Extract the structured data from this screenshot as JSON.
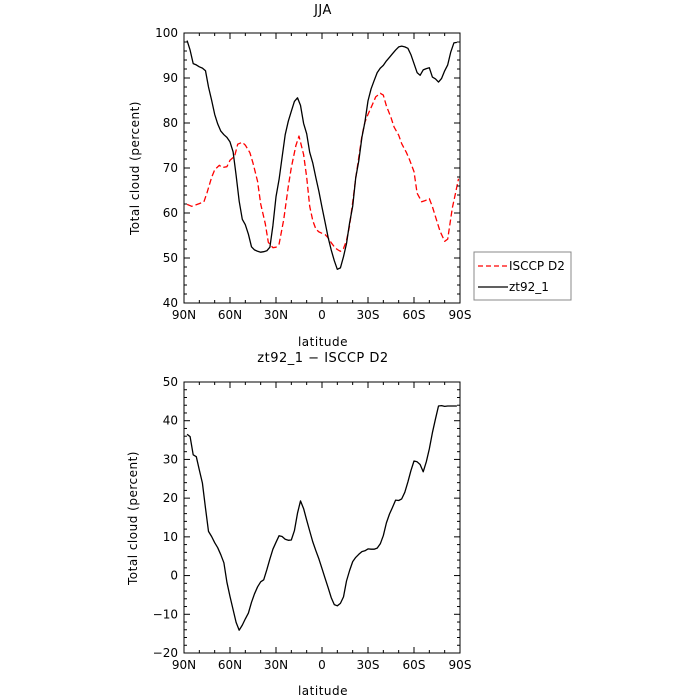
{
  "chart_data": [
    {
      "type": "line",
      "title": "JJA",
      "xlabel": "latitude",
      "ylabel": "Total cloud (percent)",
      "xlim": [
        90,
        -90
      ],
      "ylim": [
        40,
        100
      ],
      "x_ticks": [
        90,
        60,
        30,
        0,
        -30,
        -60,
        -90
      ],
      "x_tick_labels": [
        "90N",
        "60N",
        "30N",
        "0",
        "30S",
        "60S",
        "90S"
      ],
      "y_ticks": [
        40,
        50,
        60,
        70,
        80,
        90,
        100
      ],
      "y_tick_labels": [
        "40",
        "50",
        "60",
        "70",
        "80",
        "90",
        "100"
      ],
      "legend_position": "right",
      "series": [
        {
          "name": "ISCCP D2",
          "color": "#ff0000",
          "dash": "dashed",
          "x": [
            88,
            85,
            80,
            77,
            75,
            72,
            70,
            67,
            65,
            62,
            60,
            57,
            55,
            52,
            50,
            47,
            45,
            42,
            40,
            37,
            35,
            32,
            30,
            28,
            25,
            22,
            20,
            17,
            15,
            12,
            10,
            8,
            6,
            4,
            2,
            0,
            -2,
            -4,
            -6,
            -8,
            -10,
            -12,
            -14,
            -16,
            -18,
            -20,
            -22,
            -24,
            -26,
            -28,
            -30,
            -33,
            -35,
            -38,
            -40,
            -42,
            -45,
            -47,
            -50,
            -52,
            -55,
            -57,
            -60,
            -62,
            -65,
            -67,
            -70,
            -72,
            -75,
            -77,
            -80,
            -82,
            -85,
            -87,
            -89
          ],
          "y": [
            61.9,
            61.5,
            62.1,
            62.5,
            64.5,
            67.9,
            69.6,
            70.6,
            70.1,
            70.3,
            71.7,
            72.6,
            75.3,
            75.7,
            75.1,
            73.4,
            71.1,
            67,
            62,
            57.6,
            53.5,
            52.3,
            52.4,
            53.1,
            58.5,
            65.9,
            70.1,
            75,
            77.1,
            73,
            67.9,
            61.5,
            58.3,
            56.4,
            55.8,
            55.5,
            55.2,
            54.5,
            53.4,
            52.5,
            51.9,
            51.5,
            52.1,
            53.9,
            57.2,
            62.4,
            67.7,
            72.4,
            77.1,
            80.2,
            81.9,
            84.2,
            85.8,
            86.6,
            86.2,
            83.8,
            81.2,
            79.1,
            77.3,
            75.4,
            73.5,
            71.9,
            69.2,
            64.4,
            62.5,
            62.7,
            63.2,
            61.4,
            58.1,
            55.9,
            53.7,
            54.2,
            61.1,
            64.3,
            67.6
          ]
        },
        {
          "name": "zt92_1",
          "color": "#000000",
          "dash": "solid",
          "x": [
            88,
            86,
            84,
            82,
            80,
            78,
            76,
            74,
            72,
            70,
            68,
            66,
            64,
            62,
            60,
            58,
            56,
            54,
            52,
            50,
            48,
            46,
            44,
            42,
            40,
            38,
            36,
            34,
            32,
            30,
            28,
            26,
            24,
            22,
            20,
            18,
            16,
            14,
            12,
            10,
            8,
            6,
            4,
            2,
            0,
            -2,
            -4,
            -6,
            -8,
            -10,
            -12,
            -14,
            -16,
            -18,
            -20,
            -22,
            -24,
            -26,
            -28,
            -30,
            -32,
            -34,
            -36,
            -38,
            -40,
            -42,
            -44,
            -46,
            -48,
            -50,
            -52,
            -54,
            -56,
            -58,
            -60,
            -62,
            -64,
            -66,
            -68,
            -70,
            -72,
            -74,
            -76,
            -78,
            -80,
            -82,
            -84,
            -86,
            -88
          ],
          "y": [
            98.3,
            96.2,
            93.2,
            92.9,
            92.5,
            92.2,
            91.6,
            88,
            85.1,
            81.9,
            79.8,
            78.2,
            77.4,
            76.8,
            75.8,
            73.6,
            68.4,
            62.6,
            58.6,
            57.4,
            55.3,
            52.5,
            51.8,
            51.5,
            51.3,
            51.4,
            51.6,
            52.4,
            57.2,
            63.6,
            67.5,
            72.4,
            77.4,
            80.4,
            82.6,
            84.8,
            85.6,
            83.9,
            79.9,
            77.6,
            73.5,
            71.1,
            67.8,
            64.8,
            61.3,
            57.9,
            54.6,
            51.8,
            49.4,
            47.5,
            47.8,
            50.3,
            53.2,
            57.8,
            61.5,
            67.8,
            71.6,
            76.8,
            80.2,
            84.9,
            87.6,
            89.4,
            91.2,
            92.2,
            92.8,
            93.8,
            94.6,
            95.4,
            96.2,
            96.9,
            97.1,
            96.9,
            96.6,
            95.2,
            93.2,
            91.2,
            90.6,
            91.8,
            92.1,
            92.3,
            90.2,
            89.8,
            89.1,
            89.9,
            91.6,
            92.9,
            95.8,
            97.8,
            97.9
          ]
        }
      ]
    },
    {
      "type": "line",
      "title": "zt92_1 − ISCCP D2",
      "xlabel": "latitude",
      "ylabel": "Total cloud (percent)",
      "xlim": [
        90,
        -90
      ],
      "ylim": [
        -20,
        50
      ],
      "x_ticks": [
        90,
        60,
        30,
        0,
        -30,
        -60,
        -90
      ],
      "x_tick_labels": [
        "90N",
        "60N",
        "30N",
        "0",
        "30S",
        "60S",
        "90S"
      ],
      "y_ticks": [
        -20,
        -10,
        0,
        10,
        20,
        30,
        40,
        50
      ],
      "y_tick_labels": [
        "−20",
        "−10",
        "0",
        "10",
        "20",
        "30",
        "40",
        "50"
      ],
      "series": [
        {
          "color": "#000000",
          "dash": "solid",
          "x": [
            88,
            86,
            84,
            82,
            80,
            78,
            76,
            74,
            72,
            70,
            68,
            66,
            64,
            62,
            60,
            58,
            56,
            54,
            52,
            50,
            48,
            46,
            44,
            42,
            40,
            38,
            36,
            34,
            32,
            30,
            28,
            26,
            24,
            22,
            20,
            18,
            16,
            14,
            12,
            10,
            8,
            6,
            4,
            2,
            0,
            -2,
            -4,
            -6,
            -8,
            -10,
            -12,
            -14,
            -16,
            -18,
            -20,
            -22,
            -24,
            -26,
            -28,
            -30,
            -32,
            -34,
            -36,
            -38,
            -40,
            -42,
            -44,
            -46,
            -48,
            -50,
            -52,
            -54,
            -56,
            -58,
            -60,
            -62,
            -64,
            -66,
            -68,
            -70,
            -72,
            -74,
            -76,
            -78,
            -80,
            -82,
            -84,
            -86,
            -88
          ],
          "y": [
            36.5,
            35.9,
            31.2,
            30.7,
            27.3,
            23.9,
            17.4,
            11.4,
            10.1,
            8.5,
            7.2,
            5.4,
            3.3,
            -1.7,
            -5.4,
            -8.8,
            -12.1,
            -14.1,
            -12.8,
            -11.2,
            -9.7,
            -6.9,
            -4.7,
            -2.9,
            -1.6,
            -1.1,
            1.5,
            4.3,
            6.8,
            8.6,
            10.3,
            10.1,
            9.4,
            9.1,
            9.2,
            11.6,
            16.1,
            19.3,
            17.3,
            14.3,
            11.5,
            8.7,
            6.4,
            4.3,
            1.8,
            -0.7,
            -3.1,
            -5.7,
            -7.5,
            -7.8,
            -7.2,
            -5.5,
            -1.4,
            1.3,
            3.6,
            4.7,
            5.5,
            6.2,
            6.4,
            6.9,
            6.8,
            6.8,
            7.1,
            8.2,
            10.3,
            13.6,
            15.9,
            17.6,
            19.5,
            19.4,
            19.8,
            21.5,
            24.2,
            27.1,
            29.6,
            29.4,
            28.7,
            26.8,
            29.4,
            32.7,
            36.9,
            40.5,
            43.8,
            43.9,
            43.7,
            43.8,
            43.8,
            43.8,
            43.8
          ]
        }
      ]
    }
  ]
}
